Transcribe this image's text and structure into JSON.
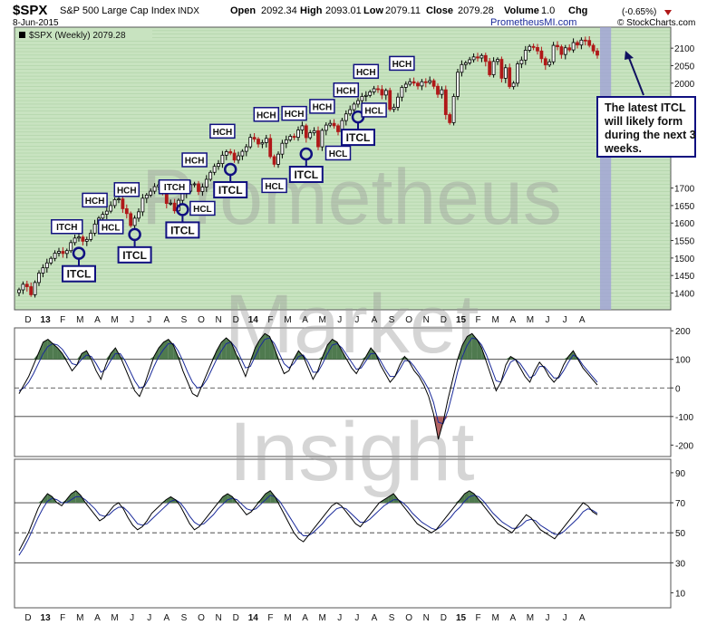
{
  "header": {
    "symbol": "$SPX",
    "description": "S&P 500 Large Cap Index",
    "exchange": "INDX",
    "date": "8-Jun-2015",
    "open_label": "Open",
    "open": "2092.34",
    "high_label": "High",
    "high": "2093.01",
    "low_label": "Low",
    "low": "2079.11",
    "close_label": "Close",
    "close": "2079.28",
    "volume_label": "Volume",
    "volume": "1.0",
    "chg_label": "Chg",
    "chg": "(-0.65%)",
    "site": "PrometheusMI.com",
    "credit": "© StockCharts.com"
  },
  "watermark": {
    "line1": "Prometheus",
    "line2": "Market",
    "line3": "Insight"
  },
  "colors": {
    "price_bg": "#c8e3c0",
    "grid": "#8fbf86",
    "up": "#000000",
    "down": "#b01818",
    "projection": "#9e9ed8",
    "osc_fill": "#4f7a4f",
    "osc_neg": "#b06060",
    "signal": "#1a2a9a",
    "label_border": "#101080",
    "arrow": "#101060"
  },
  "chart_data": [
    {
      "type": "candlestick",
      "title": "$SPX (Weekly) 2079.28",
      "timeframe": "weekly",
      "x_start": "2012-12-03",
      "x_labels": [
        "D",
        "13",
        "F",
        "M",
        "A",
        "M",
        "J",
        "J",
        "A",
        "S",
        "O",
        "N",
        "D",
        "14",
        "F",
        "M",
        "A",
        "M",
        "J",
        "J",
        "A",
        "S",
        "O",
        "N",
        "D",
        "15",
        "F",
        "M",
        "A",
        "M",
        "J",
        "J",
        "A"
      ],
      "y_ticks": [
        1400,
        1450,
        1500,
        1550,
        1600,
        1650,
        1700,
        1950,
        2000,
        2050,
        2100
      ],
      "ylim": [
        1352,
        2160
      ],
      "close": [
        1409,
        1425,
        1418,
        1395,
        1430,
        1457,
        1472,
        1486,
        1499,
        1514,
        1519,
        1513,
        1521,
        1544,
        1557,
        1560,
        1548,
        1553,
        1571,
        1597,
        1614,
        1625,
        1634,
        1650,
        1667,
        1669,
        1641,
        1627,
        1593,
        1614,
        1632,
        1671,
        1680,
        1691,
        1704,
        1709,
        1691,
        1656,
        1657,
        1635,
        1665,
        1685,
        1691,
        1710,
        1712,
        1690,
        1703,
        1725,
        1745,
        1762,
        1770,
        1794,
        1804,
        1800,
        1780,
        1792,
        1805,
        1818,
        1845,
        1840,
        1826,
        1830,
        1842,
        1790,
        1768,
        1797,
        1828,
        1838,
        1848,
        1845,
        1866,
        1878,
        1844,
        1858,
        1864,
        1818,
        1865,
        1880,
        1885,
        1878,
        1861,
        1893,
        1912,
        1924,
        1940,
        1950,
        1962,
        1965,
        1975,
        1984,
        1982,
        1966,
        1979,
        1925,
        1931,
        1960,
        1988,
        1997,
        2004,
        2000,
        1992,
        2004,
        2002,
        2007,
        1991,
        1968,
        1981,
        1910,
        1887,
        1962,
        2031,
        2053,
        2058,
        2067,
        2075,
        2072,
        2079,
        2062,
        2024,
        2062,
        2068,
        2014,
        2044,
        1990,
        2000,
        2055,
        2066,
        2094,
        2105,
        2102,
        2092,
        2070,
        2052,
        2061,
        2108,
        2104,
        2082,
        2101,
        2095,
        2116,
        2109,
        2123,
        2122,
        2108,
        2092,
        2080
      ],
      "projection_weeks": 3,
      "annotations": [
        {
          "week": 12,
          "text": "ITCH",
          "kind": "top"
        },
        {
          "week": 15,
          "text": "ITCL",
          "kind": "cycle_low"
        },
        {
          "week": 19,
          "text": "HCH",
          "kind": "top"
        },
        {
          "week": 23,
          "text": "HCL",
          "kind": "bottom"
        },
        {
          "week": 27,
          "text": "HCH",
          "kind": "top"
        },
        {
          "week": 29,
          "text": "ITCL",
          "kind": "cycle_low"
        },
        {
          "week": 39,
          "text": "ITCH",
          "kind": "top"
        },
        {
          "week": 41,
          "text": "ITCL",
          "kind": "cycle_low"
        },
        {
          "week": 44,
          "text": "HCH",
          "kind": "top"
        },
        {
          "week": 46,
          "text": "HCL",
          "kind": "bottom"
        },
        {
          "week": 51,
          "text": "HCH",
          "kind": "top"
        },
        {
          "week": 53,
          "text": "ITCL",
          "kind": "cycle_low"
        },
        {
          "week": 62,
          "text": "HCH",
          "kind": "top"
        },
        {
          "week": 64,
          "text": "HCL",
          "kind": "bottom"
        },
        {
          "week": 69,
          "text": "HCH",
          "kind": "top"
        },
        {
          "week": 72,
          "text": "ITCL",
          "kind": "cycle_low"
        },
        {
          "week": 76,
          "text": "HCH",
          "kind": "top"
        },
        {
          "week": 80,
          "text": "HCL",
          "kind": "bottom"
        },
        {
          "week": 82,
          "text": "HCH",
          "kind": "top"
        },
        {
          "week": 85,
          "text": "ITCL",
          "kind": "cycle_low"
        },
        {
          "week": 87,
          "text": "HCH",
          "kind": "top"
        },
        {
          "week": 89,
          "text": "HCL",
          "kind": "bottom"
        },
        {
          "week": 96,
          "text": "HCH",
          "kind": "top"
        }
      ],
      "callout": "The latest ITCL will likely form during the next 3 weeks."
    },
    {
      "type": "line",
      "ylim": [
        -240,
        210
      ],
      "y_ticks": [
        200,
        100,
        0,
        -100,
        -200
      ],
      "reference_lines": [
        100,
        0,
        -100
      ],
      "series": [
        {
          "values": [
            -20,
            10,
            40,
            80,
            120,
            160,
            170,
            155,
            140,
            120,
            90,
            60,
            80,
            120,
            130,
            100,
            60,
            30,
            80,
            120,
            140,
            110,
            70,
            30,
            -10,
            -30,
            10,
            60,
            110,
            140,
            160,
            170,
            150,
            110,
            60,
            20,
            -20,
            -30,
            10,
            50,
            90,
            130,
            160,
            175,
            160,
            120,
            80,
            40,
            90,
            140,
            170,
            190,
            180,
            140,
            90,
            50,
            60,
            100,
            130,
            110,
            70,
            30,
            60,
            110,
            150,
            170,
            160,
            130,
            100,
            70,
            50,
            80,
            110,
            140,
            120,
            80,
            50,
            20,
            40,
            80,
            110,
            90,
            60,
            40,
            10,
            -30,
            -90,
            -180,
            -120,
            -40,
            30,
            100,
            150,
            180,
            190,
            170,
            140,
            90,
            40,
            -10,
            20,
            80,
            110,
            100,
            70,
            40,
            20,
            60,
            90,
            70,
            40,
            20,
            40,
            80,
            110,
            130,
            100,
            70,
            50,
            30,
            10
          ]
        },
        {
          "values": [
            -10,
            0,
            20,
            50,
            85,
            120,
            145,
            155,
            150,
            135,
            110,
            85,
            80,
            100,
            115,
            110,
            85,
            55,
            65,
            95,
            120,
            120,
            95,
            60,
            25,
            0,
            5,
            35,
            75,
            110,
            135,
            155,
            155,
            130,
            95,
            55,
            20,
            0,
            5,
            30,
            65,
            100,
            130,
            155,
            160,
            140,
            105,
            70,
            75,
            110,
            145,
            170,
            175,
            155,
            120,
            85,
            70,
            85,
            110,
            115,
            90,
            55,
            55,
            85,
            120,
            150,
            155,
            140,
            115,
            90,
            65,
            70,
            95,
            120,
            120,
            95,
            65,
            40,
            40,
            65,
            95,
            95,
            75,
            50,
            25,
            -5,
            -50,
            -120,
            -125,
            -80,
            -15,
            55,
            110,
            150,
            175,
            170,
            150,
            115,
            70,
            25,
            20,
            55,
            90,
            100,
            85,
            60,
            35,
            45,
            75,
            75,
            55,
            35,
            35,
            60,
            90,
            115,
            105,
            80,
            60,
            40,
            20
          ]
        }
      ]
    },
    {
      "type": "line",
      "ylim": [
        0,
        99
      ],
      "y_ticks": [
        90,
        70,
        50,
        30,
        10
      ],
      "reference_lines": [
        70,
        50,
        30
      ],
      "series": [
        {
          "values": [
            38,
            44,
            50,
            58,
            66,
            72,
            76,
            74,
            70,
            68,
            72,
            76,
            78,
            75,
            70,
            66,
            62,
            58,
            60,
            64,
            68,
            70,
            66,
            60,
            55,
            52,
            54,
            58,
            63,
            66,
            69,
            72,
            74,
            72,
            68,
            62,
            56,
            52,
            54,
            58,
            62,
            66,
            70,
            74,
            76,
            74,
            70,
            66,
            62,
            64,
            68,
            72,
            76,
            78,
            74,
            68,
            62,
            56,
            50,
            46,
            44,
            48,
            52,
            56,
            60,
            64,
            68,
            70,
            68,
            64,
            60,
            56,
            54,
            58,
            62,
            66,
            70,
            72,
            74,
            76,
            72,
            68,
            64,
            60,
            56,
            54,
            52,
            50,
            52,
            56,
            60,
            64,
            68,
            72,
            76,
            78,
            76,
            72,
            68,
            64,
            60,
            56,
            54,
            52,
            50,
            54,
            58,
            62,
            60,
            56,
            52,
            50,
            48,
            46,
            50,
            54,
            58,
            62,
            66,
            70,
            68,
            64,
            62
          ]
        },
        {
          "values": [
            35,
            40,
            46,
            53,
            60,
            66,
            71,
            73,
            72,
            70,
            70,
            72,
            74,
            74,
            72,
            69,
            66,
            62,
            61,
            62,
            65,
            67,
            67,
            64,
            60,
            56,
            55,
            56,
            59,
            62,
            65,
            68,
            71,
            72,
            70,
            66,
            61,
            57,
            55,
            56,
            59,
            62,
            66,
            69,
            72,
            73,
            72,
            69,
            66,
            65,
            66,
            69,
            72,
            75,
            74,
            71,
            66,
            61,
            56,
            51,
            48,
            48,
            50,
            53,
            56,
            60,
            63,
            66,
            67,
            66,
            63,
            60,
            57,
            57,
            59,
            62,
            65,
            68,
            70,
            72,
            72,
            70,
            67,
            63,
            60,
            57,
            55,
            53,
            52,
            54,
            57,
            60,
            64,
            67,
            71,
            74,
            75,
            74,
            71,
            67,
            63,
            60,
            57,
            55,
            53,
            53,
            55,
            58,
            59,
            58,
            55,
            53,
            51,
            49,
            49,
            51,
            54,
            57,
            60,
            64,
            66,
            65,
            63
          ]
        }
      ]
    }
  ]
}
